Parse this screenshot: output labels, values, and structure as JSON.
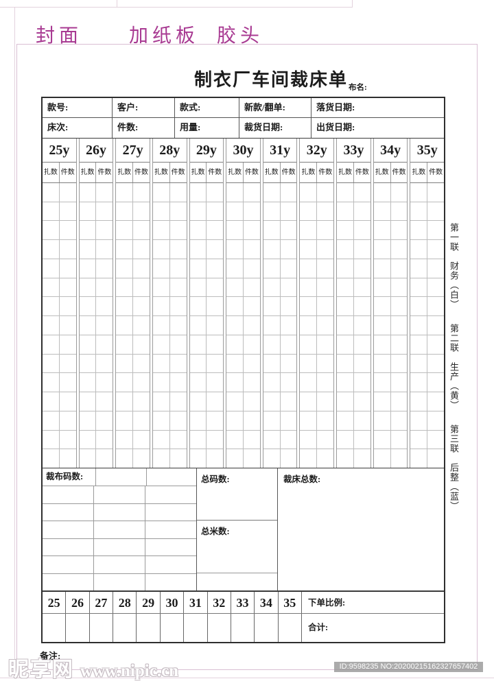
{
  "page": {
    "top_labels": [
      "封面",
      "加纸板",
      "胶头"
    ],
    "accent_color": "#a83a92",
    "page_border_color": "#d9bed3"
  },
  "form": {
    "title": "制衣厂车间裁床单",
    "fabric_label": "布名:",
    "info_rows": [
      [
        "款号:",
        "客户:",
        "款式:",
        "新款/翻单:",
        "落货日期:"
      ],
      [
        "床次:",
        "件数:",
        "用量:",
        "裁货日期:",
        "出货日期:"
      ]
    ],
    "size_table": {
      "sizes": [
        "25y",
        "26y",
        "27y",
        "28y",
        "29y",
        "30y",
        "31y",
        "32y",
        "33y",
        "34y",
        "35y"
      ],
      "sub_columns": [
        "扎数",
        "件数"
      ],
      "body_row_count": 15
    },
    "summary": {
      "cut_fabric_label": "裁布码数:",
      "left_grid_columns": 3,
      "left_grid_extra_rows": 6,
      "total_yards_label": "总码数:",
      "total_meters_label": "总米数:",
      "cutting_total_label": "裁床总数:"
    },
    "ratio_row": {
      "numbers": [
        "25",
        "26",
        "27",
        "28",
        "29",
        "30",
        "31",
        "32",
        "33",
        "34",
        "35"
      ],
      "order_ratio_label": "下单比例:",
      "total_label": "合计:"
    },
    "remark_label": "备注:"
  },
  "copies": [
    {
      "label": "第一联　财务（白）"
    },
    {
      "label": "第二联　生产（黄）"
    },
    {
      "label": "第三联　后整（蓝）"
    }
  ],
  "watermark": {
    "site_name": "昵享网",
    "site_url": "www.nipic.cn",
    "id_text": "ID:9598235 NO:20200215162327657402"
  }
}
